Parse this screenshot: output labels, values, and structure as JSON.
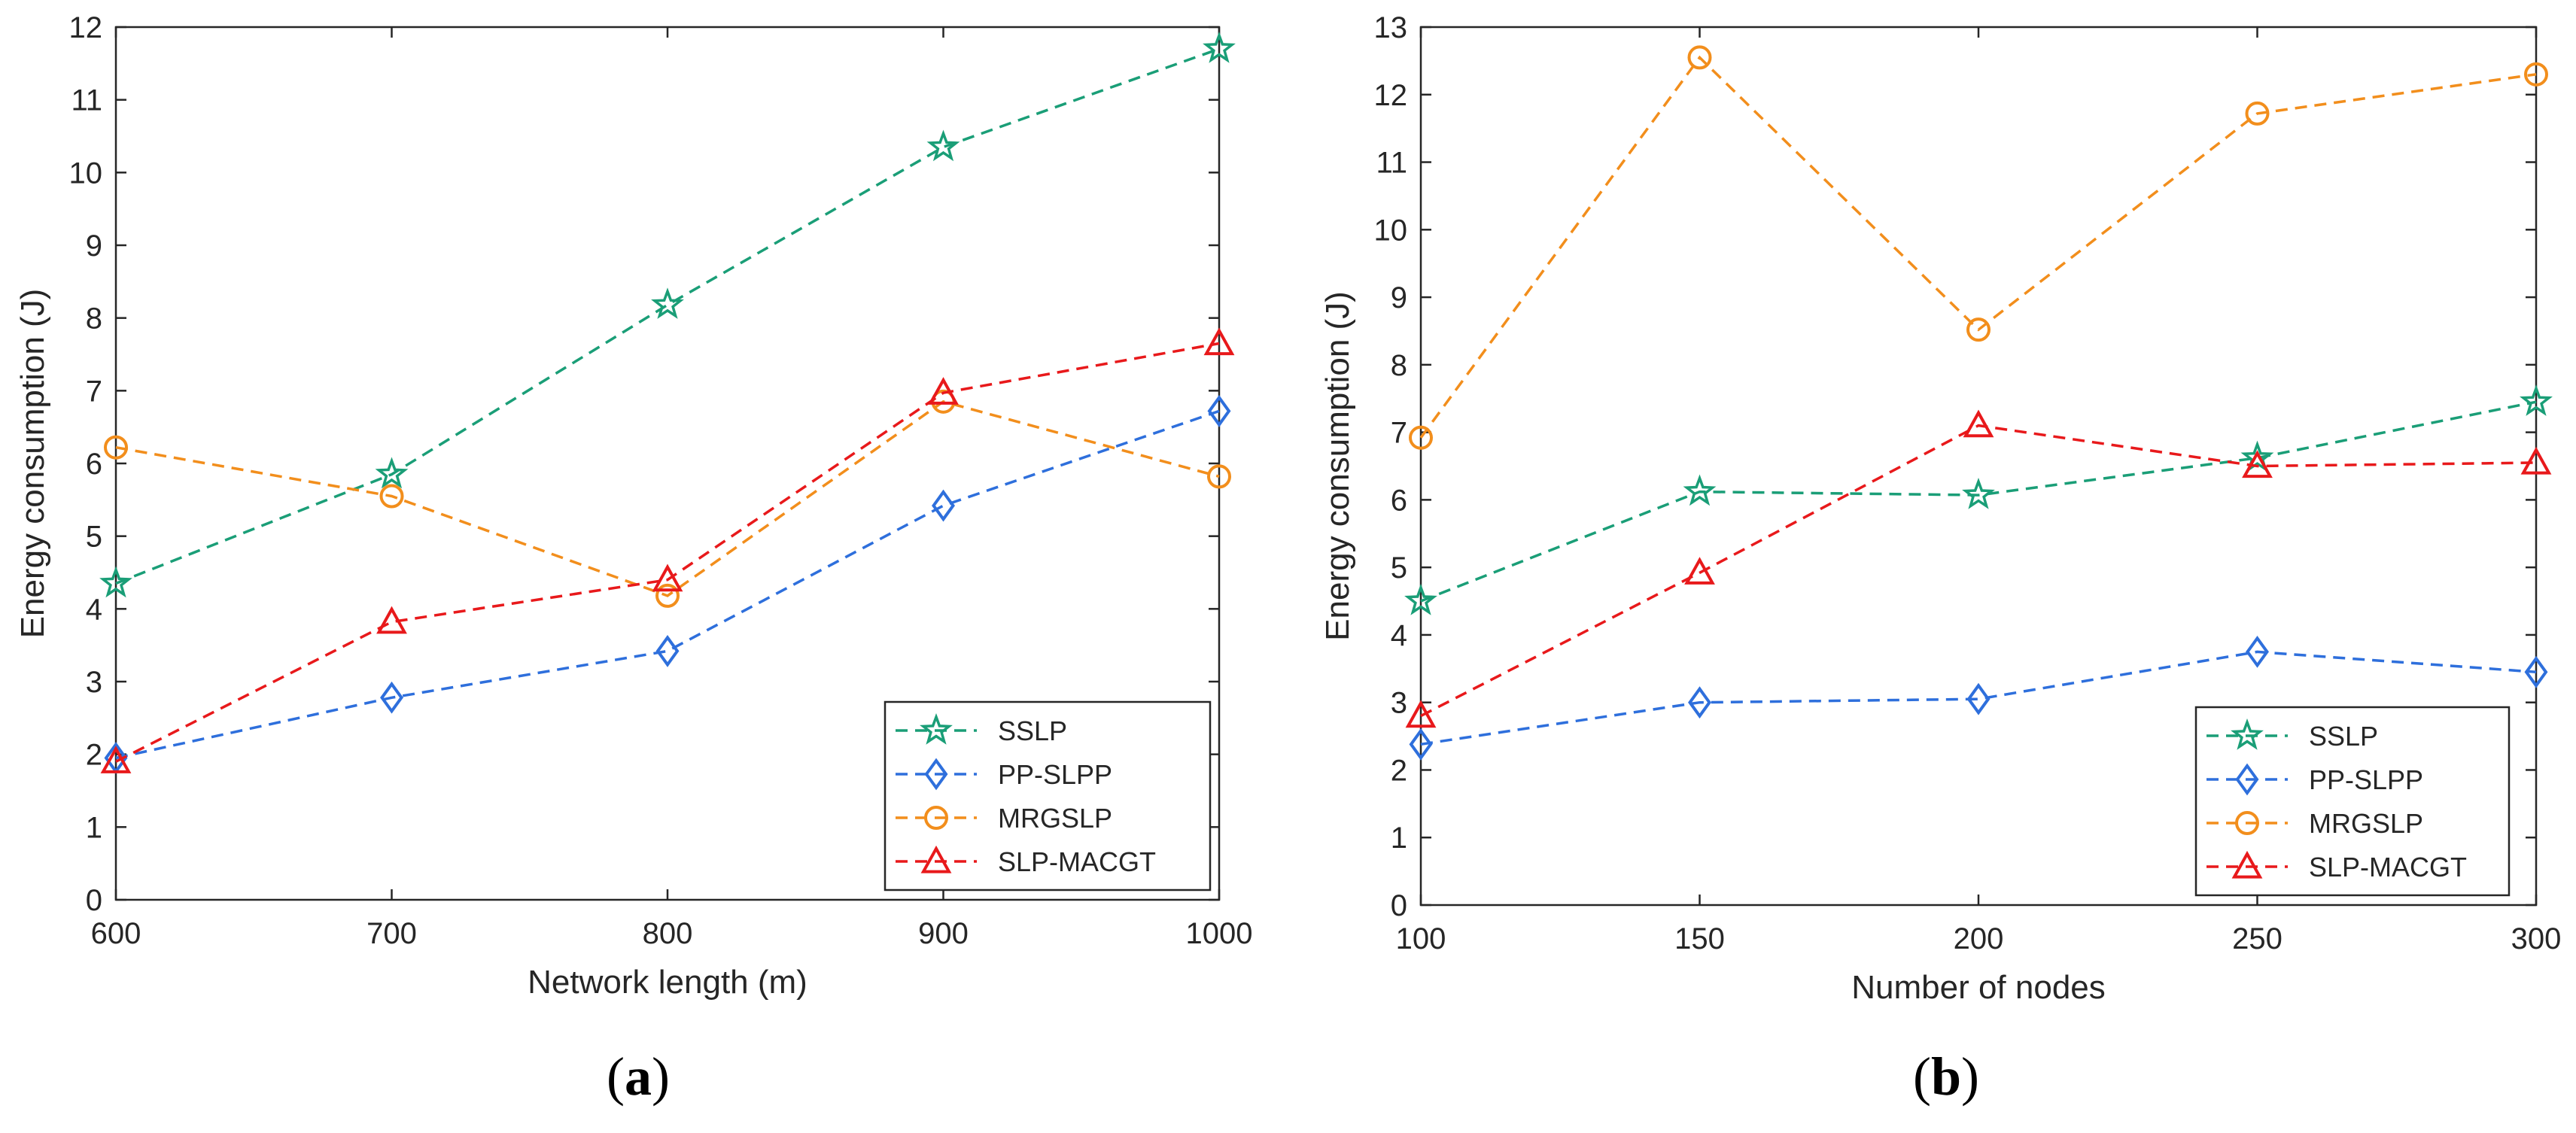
{
  "chart_data": [
    {
      "type": "line",
      "panel_label": "a",
      "xlabel": "Network length (m)",
      "ylabel": "Energy  consumption (J)",
      "x": [
        600,
        700,
        800,
        900,
        1000
      ],
      "xlim": [
        600,
        1000
      ],
      "ylim": [
        0,
        12
      ],
      "xticks": [
        600,
        700,
        800,
        900,
        1000
      ],
      "yticks": [
        0,
        1,
        2,
        3,
        4,
        5,
        6,
        7,
        8,
        9,
        10,
        11,
        12
      ],
      "legend_position": "bottom-right",
      "series": [
        {
          "name": "SSLP",
          "color": "#1a9e77",
          "marker": "star",
          "values": [
            4.35,
            5.85,
            8.18,
            10.35,
            11.7
          ]
        },
        {
          "name": "PP-SLPP",
          "color": "#2e6fdc",
          "marker": "diamond",
          "values": [
            1.95,
            2.78,
            3.42,
            5.42,
            6.72
          ]
        },
        {
          "name": "MRGSLP",
          "color": "#f28e1c",
          "marker": "circle",
          "values": [
            6.22,
            5.55,
            4.18,
            6.85,
            5.82
          ]
        },
        {
          "name": "SLP-MACGT",
          "color": "#e8191b",
          "marker": "triangle",
          "values": [
            1.9,
            3.82,
            4.4,
            6.97,
            7.65
          ]
        }
      ]
    },
    {
      "type": "line",
      "panel_label": "b",
      "xlabel": "Number of nodes",
      "ylabel": "Energy  consumption (J)",
      "x": [
        100,
        150,
        200,
        250,
        300
      ],
      "xlim": [
        100,
        300
      ],
      "ylim": [
        0,
        13
      ],
      "xticks": [
        100,
        150,
        200,
        250,
        300
      ],
      "yticks": [
        0,
        1,
        2,
        3,
        4,
        5,
        6,
        7,
        8,
        9,
        10,
        11,
        12,
        13
      ],
      "legend_position": "bottom-right",
      "series": [
        {
          "name": "SSLP",
          "color": "#1a9e77",
          "marker": "star",
          "values": [
            4.5,
            6.12,
            6.07,
            6.62,
            7.45
          ]
        },
        {
          "name": "PP-SLPP",
          "color": "#2e6fdc",
          "marker": "diamond",
          "values": [
            2.38,
            3.0,
            3.05,
            3.75,
            3.45
          ]
        },
        {
          "name": "MRGSLP",
          "color": "#f28e1c",
          "marker": "circle",
          "values": [
            6.92,
            12.55,
            8.52,
            11.72,
            12.3
          ]
        },
        {
          "name": "SLP-MACGT",
          "color": "#e8191b",
          "marker": "triangle",
          "values": [
            2.8,
            4.92,
            7.1,
            6.5,
            6.55
          ]
        }
      ]
    }
  ]
}
